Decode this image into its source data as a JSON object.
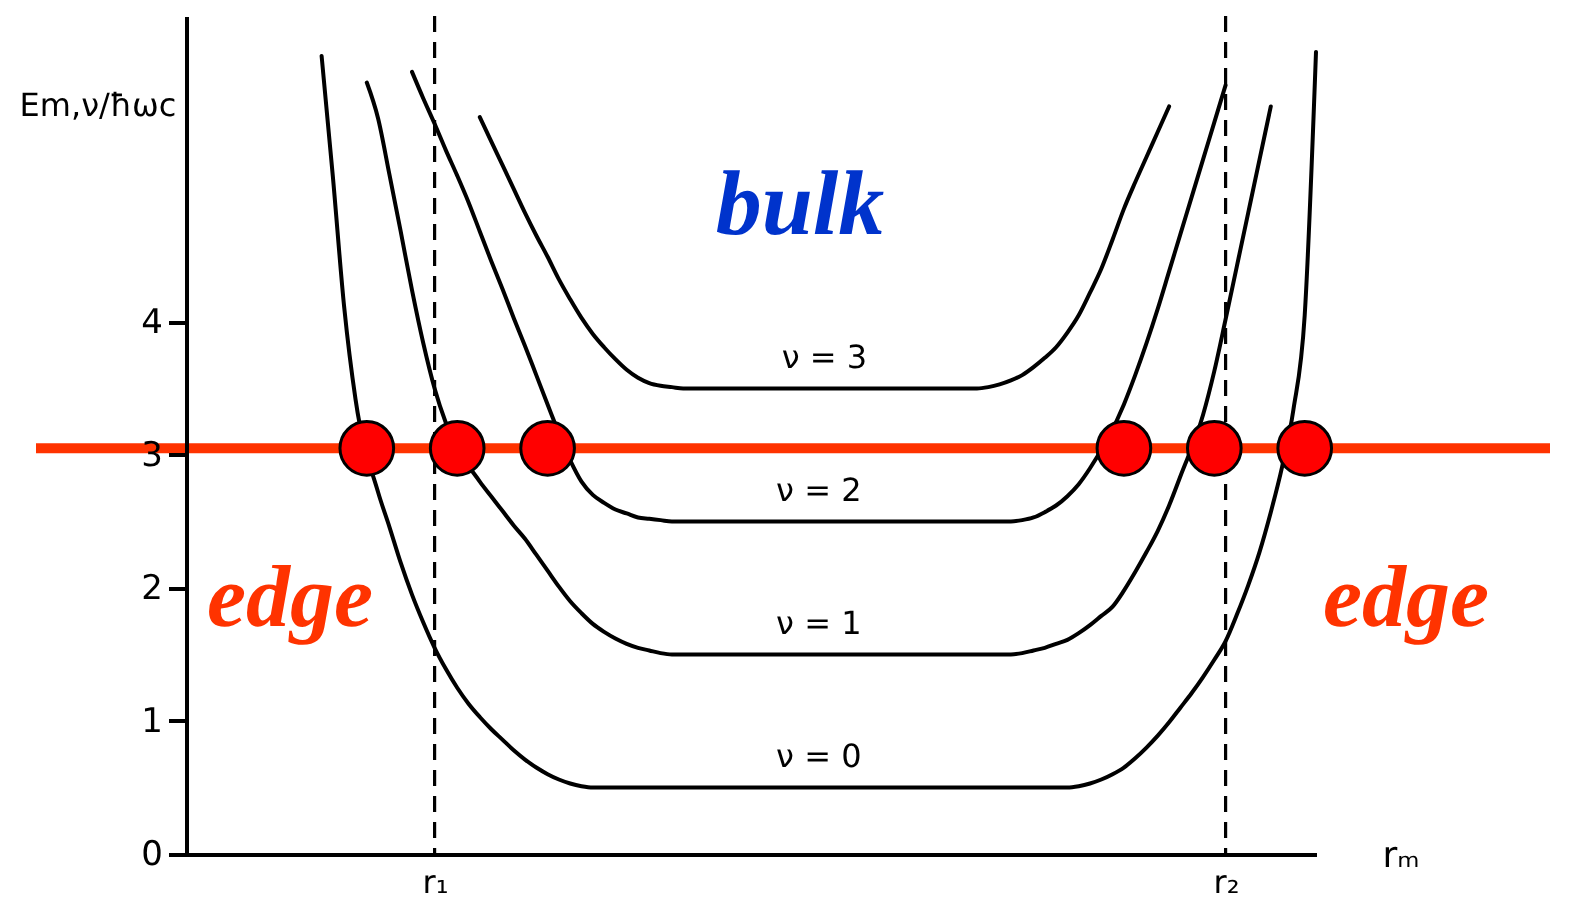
{
  "chart_data": {
    "type": "line",
    "ylabel": "Em,ν/ħωc",
    "xlabel": "rₘ",
    "categories": [
      null,
      null,
      null,
      null,
      null,
      null,
      null,
      null,
      null,
      null,
      null,
      null,
      null,
      null,
      null,
      null,
      null,
      null,
      null,
      null,
      null,
      null,
      "r₁",
      null,
      null,
      null,
      null,
      null,
      null,
      null,
      null,
      null,
      null,
      null,
      null,
      null,
      null,
      null,
      null,
      null,
      null,
      null,
      null,
      null,
      null,
      null,
      null,
      null,
      null,
      null,
      null,
      null,
      null,
      null,
      null,
      null,
      null,
      null,
      null,
      null,
      null,
      null,
      null,
      null,
      null,
      null,
      null,
      null,
      null,
      null,
      null,
      null,
      null,
      null,
      null,
      null,
      null,
      null,
      null,
      null,
      null,
      null,
      null,
      null,
      null,
      null,
      null,
      null,
      null,
      null,
      null,
      null,
      "r₂",
      null,
      null,
      null,
      null,
      null,
      null,
      null,
      null
    ],
    "ylim": [
      0,
      6.3
    ],
    "yticks": [
      0,
      1,
      2,
      3,
      4
    ],
    "grid": false,
    "marker": "none",
    "line_style": "solid",
    "series": [
      {
        "name": "ν = 0",
        "color": "#000000",
        "values": [
          null,
          null,
          null,
          null,
          null,
          null,
          null,
          null,
          null,
          null,
          null,
          null,
          6.0,
          5.09,
          4.11,
          3.42,
          null,
          2.72,
          2.46,
          2.19,
          1.95,
          1.74,
          1.55,
          1.39,
          1.25,
          1.13,
          1.03,
          0.94,
          0.86,
          0.78,
          0.71,
          0.65,
          0.6,
          0.56,
          0.53,
          0.51,
          0.5,
          0.5,
          0.5,
          0.5,
          0.5,
          0.5,
          0.5,
          0.5,
          0.5,
          0.5,
          0.5,
          0.5,
          0.5,
          0.5,
          0.5,
          0.5,
          0.5,
          0.5,
          0.5,
          0.5,
          0.5,
          0.5,
          0.5,
          0.5,
          0.5,
          0.5,
          0.5,
          0.5,
          0.5,
          0.5,
          0.5,
          0.5,
          0.5,
          0.5,
          0.5,
          0.5,
          0.5,
          0.5,
          0.5,
          0.5,
          0.5,
          0.5,
          0.5,
          0.51,
          0.53,
          0.56,
          0.6,
          0.65,
          0.72,
          0.8,
          0.89,
          0.99,
          1.1,
          1.21,
          1.33,
          1.46,
          1.6,
          1.8,
          2.02,
          2.27,
          2.57,
          2.91,
          3.34,
          4.05,
          6.03
        ]
      },
      {
        "name": "ν = 1",
        "color": "#000000",
        "values": [
          null,
          null,
          null,
          null,
          null,
          null,
          null,
          null,
          null,
          null,
          null,
          null,
          null,
          null,
          null,
          null,
          5.8,
          5.53,
          5.11,
          4.68,
          4.24,
          3.84,
          3.5,
          3.24,
          null,
          null,
          2.8,
          2.69,
          2.58,
          2.47,
          2.37,
          2.25,
          2.13,
          2.01,
          1.9,
          1.81,
          1.73,
          1.67,
          1.62,
          1.58,
          1.55,
          1.53,
          1.51,
          1.5,
          1.5,
          1.5,
          1.5,
          1.5,
          1.5,
          1.5,
          1.5,
          1.5,
          1.5,
          1.5,
          1.5,
          1.5,
          1.5,
          1.5,
          1.5,
          1.5,
          1.5,
          1.5,
          1.5,
          1.5,
          1.5,
          1.5,
          1.5,
          1.5,
          1.5,
          1.5,
          1.5,
          1.5,
          1.5,
          1.5,
          1.51,
          1.53,
          1.55,
          1.58,
          1.61,
          1.66,
          1.72,
          1.79,
          1.86,
          1.98,
          2.12,
          2.27,
          2.43,
          2.62,
          2.84,
          null,
          3.3,
          3.63,
          4.02,
          4.42,
          4.82,
          5.22,
          5.62,
          null,
          null,
          null,
          null
        ]
      },
      {
        "name": "ν = 2",
        "color": "#000000",
        "values": [
          null,
          null,
          null,
          null,
          null,
          null,
          null,
          null,
          null,
          null,
          null,
          null,
          null,
          null,
          null,
          null,
          null,
          null,
          null,
          null,
          5.88,
          5.68,
          5.49,
          5.29,
          5.1,
          4.9,
          4.68,
          4.46,
          4.25,
          4.03,
          3.82,
          3.6,
          3.38,
          null,
          2.96,
          2.8,
          2.7,
          2.64,
          2.59,
          2.56,
          2.53,
          2.52,
          2.51,
          2.5,
          2.5,
          2.5,
          2.5,
          2.5,
          2.5,
          2.5,
          2.5,
          2.5,
          2.5,
          2.5,
          2.5,
          2.5,
          2.5,
          2.5,
          2.5,
          2.5,
          2.5,
          2.5,
          2.5,
          2.5,
          2.5,
          2.5,
          2.5,
          2.5,
          2.5,
          2.5,
          2.5,
          2.5,
          2.5,
          2.5,
          2.51,
          2.53,
          2.57,
          2.62,
          2.69,
          2.78,
          2.9,
          null,
          null,
          3.38,
          3.6,
          3.84,
          4.1,
          4.38,
          4.66,
          4.94,
          5.22,
          5.5,
          5.78,
          null,
          null,
          null,
          null,
          null,
          null,
          null,
          null
        ]
      },
      {
        "name": "ν = 3",
        "color": "#000000",
        "values": [
          null,
          null,
          null,
          null,
          null,
          null,
          null,
          null,
          null,
          null,
          null,
          null,
          null,
          null,
          null,
          null,
          null,
          null,
          null,
          null,
          null,
          null,
          null,
          null,
          null,
          null,
          5.54,
          5.36,
          5.18,
          5.0,
          4.82,
          4.65,
          4.49,
          4.32,
          4.17,
          4.03,
          3.91,
          3.81,
          3.72,
          3.64,
          3.58,
          3.54,
          3.52,
          3.51,
          3.5,
          3.5,
          3.5,
          3.5,
          3.5,
          3.5,
          3.5,
          3.5,
          3.5,
          3.5,
          3.5,
          3.5,
          3.5,
          3.5,
          3.5,
          3.5,
          3.5,
          3.5,
          3.5,
          3.5,
          3.5,
          3.5,
          3.5,
          3.5,
          3.5,
          3.5,
          3.5,
          3.51,
          3.53,
          3.56,
          3.6,
          3.66,
          3.73,
          3.81,
          3.92,
          4.05,
          4.22,
          4.4,
          4.62,
          4.85,
          5.05,
          5.24,
          5.43,
          5.62,
          null,
          null,
          null,
          null,
          null,
          null,
          null,
          null,
          null,
          null,
          null,
          null,
          null
        ]
      },
      {
        "type": "scatter",
        "color": "#ff0000",
        "marker": "circle",
        "values": [
          null,
          null,
          null,
          null,
          null,
          null,
          null,
          null,
          null,
          null,
          null,
          null,
          null,
          null,
          null,
          null,
          3.05,
          null,
          null,
          null,
          null,
          null,
          null,
          null,
          3.05,
          null,
          null,
          null,
          null,
          null,
          null,
          null,
          3.05,
          null,
          null,
          null,
          null,
          null,
          null,
          null,
          null,
          null,
          null,
          null,
          null,
          null,
          null,
          null,
          null,
          null,
          null,
          null,
          null,
          null,
          null,
          null,
          null,
          null,
          null,
          null,
          null,
          null,
          null,
          null,
          null,
          null,
          null,
          null,
          null,
          null,
          null,
          null,
          null,
          null,
          null,
          null,
          null,
          null,
          null,
          null,
          null,
          null,
          null,
          3.05,
          null,
          null,
          null,
          null,
          null,
          null,
          null,
          3.05,
          null,
          null,
          null,
          null,
          null,
          null,
          null,
          3.05,
          null
        ]
      }
    ],
    "ref_lines": [
      {
        "axis": "x",
        "value": "r₁",
        "color": "#000000",
        "line_style": "dashed"
      },
      {
        "axis": "x",
        "value": "r₂",
        "color": "#000000",
        "line_style": "dashed"
      },
      {
        "axis": "y",
        "value": 3.05,
        "color": "#ff3300"
      }
    ],
    "annotations": [
      "bulk",
      "edge",
      "edge"
    ]
  }
}
